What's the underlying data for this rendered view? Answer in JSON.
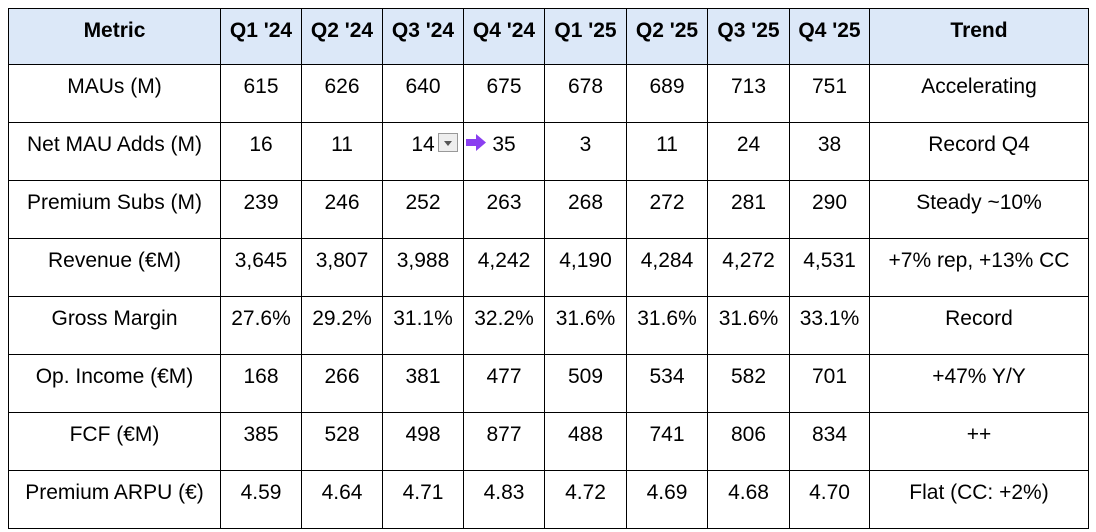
{
  "table": {
    "header": [
      "Metric",
      "Q1 '24",
      "Q2 '24",
      "Q3 '24",
      "Q4 '24",
      "Q1 '25",
      "Q2 '25",
      "Q3 '25",
      "Q4 '25",
      "Trend"
    ],
    "rows": [
      [
        "MAUs (M)",
        "615",
        "626",
        "640",
        "675",
        "678",
        "689",
        "713",
        "751",
        "Accelerating"
      ],
      [
        "Net MAU Adds (M)",
        "16",
        "11",
        "14",
        "35",
        "3",
        "11",
        "24",
        "38",
        "Record Q4"
      ],
      [
        "Premium Subs (M)",
        "239",
        "246",
        "252",
        "263",
        "268",
        "272",
        "281",
        "290",
        "Steady ~10%"
      ],
      [
        "Revenue (€M)",
        "3,645",
        "3,807",
        "3,988",
        "4,242",
        "4,190",
        "4,284",
        "4,272",
        "4,531",
        "+7% rep, +13% CC"
      ],
      [
        "Gross Margin",
        "27.6%",
        "29.2%",
        "31.1%",
        "32.2%",
        "31.6%",
        "31.6%",
        "31.6%",
        "33.1%",
        "Record"
      ],
      [
        "Op. Income (€M)",
        "168",
        "266",
        "381",
        "477",
        "509",
        "534",
        "582",
        "701",
        "+47% Y/Y"
      ],
      [
        "FCF (€M)",
        "385",
        "528",
        "498",
        "877",
        "488",
        "741",
        "806",
        "834",
        "++"
      ],
      [
        "Premium ARPU (€)",
        "4.59",
        "4.64",
        "4.71",
        "4.83",
        "4.72",
        "4.69",
        "4.68",
        "4.70",
        "Flat (CC: +2%)"
      ]
    ]
  }
}
